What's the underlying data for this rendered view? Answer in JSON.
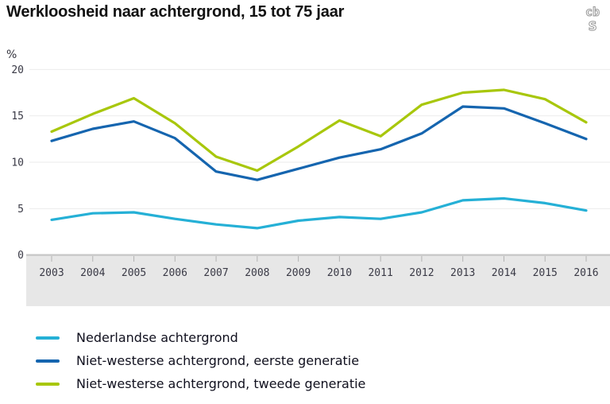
{
  "title": "Werkloosheid naar achtergrond, 15 tot 75 jaar",
  "logo": {
    "line1": "cb",
    "line2": "s"
  },
  "colors": {
    "series_nl": "#25b0d6",
    "series_first_gen": "#1565af",
    "series_second_gen": "#a8c70c",
    "gridline": "#ebebeb",
    "zero_line": "#c7c7c7",
    "axis_band": "#e7e7e7",
    "axis_tick": "#b3b3b3",
    "tick_text": "#3a3a46",
    "title_text": "#121212",
    "legend_text": "#10101e",
    "logo_gray": "#979797"
  },
  "chart_data": {
    "type": "line",
    "title": "Werkloosheid naar achtergrond, 15 tot 75 jaar",
    "xlabel": "",
    "ylabel": "%",
    "ylim": [
      0,
      20
    ],
    "y_ticks": [
      0,
      5,
      10,
      15,
      20
    ],
    "grid": true,
    "legend_position": "bottom",
    "categories": [
      "2003",
      "2004",
      "2005",
      "2006",
      "2007",
      "2008",
      "2009",
      "2010",
      "2011",
      "2012",
      "2013",
      "2014",
      "2015",
      "2016"
    ],
    "series": [
      {
        "name": "Nederlandse achtergrond",
        "color": "#25b0d6",
        "values": [
          3.8,
          4.5,
          4.6,
          3.9,
          3.3,
          2.9,
          3.7,
          4.1,
          3.9,
          4.6,
          5.9,
          6.1,
          5.6,
          4.8
        ]
      },
      {
        "name": "Niet-westerse achtergrond, eerste generatie",
        "color": "#1565af",
        "values": [
          12.3,
          13.6,
          14.4,
          12.6,
          9.0,
          8.1,
          9.3,
          10.5,
          11.4,
          13.1,
          16.0,
          15.8,
          14.2,
          12.5
        ]
      },
      {
        "name": "Niet-westerse achtergrond, tweede generatie",
        "color": "#a8c70c",
        "values": [
          13.3,
          15.2,
          16.9,
          14.2,
          10.6,
          9.1,
          11.7,
          14.5,
          12.8,
          16.2,
          17.5,
          17.8,
          16.8,
          14.3
        ]
      }
    ]
  }
}
